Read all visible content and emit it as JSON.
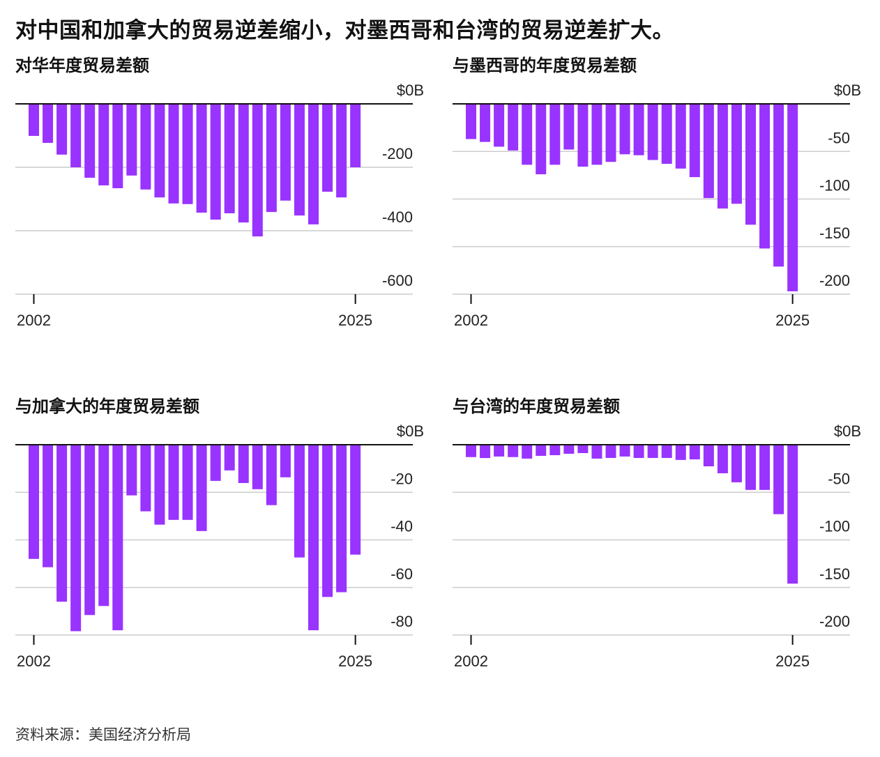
{
  "title": "对中国和加拿大的贸易逆差缩小，对墨西哥和台湾的贸易逆差扩大。",
  "source": "资料来源：美国经济分析局",
  "colors": {
    "bar": "#9933ff",
    "grid": "#cccccc",
    "zero_line": "#111111"
  },
  "chart_data": [
    {
      "type": "bar",
      "title": "对华年度贸易差额",
      "xlabel": "",
      "ylabel": "",
      "x": [
        2002,
        2003,
        2004,
        2005,
        2006,
        2007,
        2008,
        2009,
        2010,
        2011,
        2012,
        2013,
        2014,
        2015,
        2016,
        2017,
        2018,
        2019,
        2020,
        2021,
        2022,
        2023,
        2024,
        2025
      ],
      "x_tick_labels": [
        "2002",
        "2025"
      ],
      "values": [
        -101,
        -123,
        -160,
        -200,
        -233,
        -257,
        -266,
        -226,
        -270,
        -295,
        -314,
        -316,
        -343,
        -365,
        -345,
        -374,
        -418,
        -341,
        -305,
        -352,
        -380,
        -277,
        -295,
        -200
      ],
      "ylim": [
        -600,
        0
      ],
      "y_ticks": [
        0,
        -200,
        -400,
        -600
      ],
      "y_tick_labels": [
        "$0B",
        "-200",
        "-400",
        "-600"
      ],
      "grid": true
    },
    {
      "type": "bar",
      "title": "与墨西哥的年度贸易差额",
      "xlabel": "",
      "ylabel": "",
      "x": [
        2002,
        2003,
        2004,
        2005,
        2006,
        2007,
        2008,
        2009,
        2010,
        2011,
        2012,
        2013,
        2014,
        2015,
        2016,
        2017,
        2018,
        2019,
        2020,
        2021,
        2022,
        2023,
        2024,
        2025
      ],
      "x_tick_labels": [
        "2002",
        "2025"
      ],
      "values": [
        -37,
        -40,
        -45,
        -49,
        -64,
        -74,
        -64,
        -48,
        -66,
        -64,
        -61,
        -53,
        -54,
        -59,
        -63,
        -68,
        -77,
        -99,
        -110,
        -105,
        -127,
        -152,
        -171,
        -197
      ],
      "ylim": [
        -200,
        0
      ],
      "y_ticks": [
        0,
        -50,
        -100,
        -150,
        -200
      ],
      "y_tick_labels": [
        "$0B",
        "-50",
        "-100",
        "-150",
        "-200"
      ],
      "grid": true
    },
    {
      "type": "bar",
      "title": "与加拿大的年度贸易差额",
      "xlabel": "",
      "ylabel": "",
      "x": [
        2002,
        2003,
        2004,
        2005,
        2006,
        2007,
        2008,
        2009,
        2010,
        2011,
        2012,
        2013,
        2014,
        2015,
        2016,
        2017,
        2018,
        2019,
        2020,
        2021,
        2022,
        2023,
        2024,
        2025
      ],
      "x_tick_labels": [
        "2002",
        "2025"
      ],
      "values": [
        -48,
        -51.5,
        -66,
        -78.4,
        -71.6,
        -67.8,
        -78,
        -21.3,
        -28,
        -33.6,
        -31.6,
        -31.6,
        -36.3,
        -15.2,
        -10.8,
        -16.1,
        -18.7,
        -25.4,
        -13.7,
        -47.4,
        -78,
        -64,
        -62,
        -46.2
      ],
      "ylim": [
        -80,
        0
      ],
      "y_ticks": [
        0,
        -20,
        -40,
        -60,
        -80
      ],
      "y_tick_labels": [
        "$0B",
        "-20",
        "-40",
        "-60",
        "-80"
      ],
      "grid": true
    },
    {
      "type": "bar",
      "title": "与台湾的年度贸易差额",
      "xlabel": "",
      "ylabel": "",
      "x": [
        2002,
        2003,
        2004,
        2005,
        2006,
        2007,
        2008,
        2009,
        2010,
        2011,
        2012,
        2013,
        2014,
        2015,
        2016,
        2017,
        2018,
        2019,
        2020,
        2021,
        2022,
        2023,
        2024,
        2025
      ],
      "x_tick_labels": [
        "2002",
        "2025"
      ],
      "values": [
        -13,
        -14,
        -12.4,
        -13,
        -14.6,
        -11.7,
        -11,
        -9.5,
        -8.8,
        -14.6,
        -13.9,
        -12.4,
        -13.9,
        -13.9,
        -13.9,
        -16,
        -15.4,
        -22.7,
        -30,
        -39.5,
        -47.5,
        -47.5,
        -73,
        -146
      ],
      "ylim": [
        -200,
        0
      ],
      "y_ticks": [
        0,
        -50,
        -100,
        -150,
        -200
      ],
      "y_tick_labels": [
        "$0B",
        "-50",
        "-100",
        "-150",
        "-200"
      ],
      "grid": true
    }
  ]
}
